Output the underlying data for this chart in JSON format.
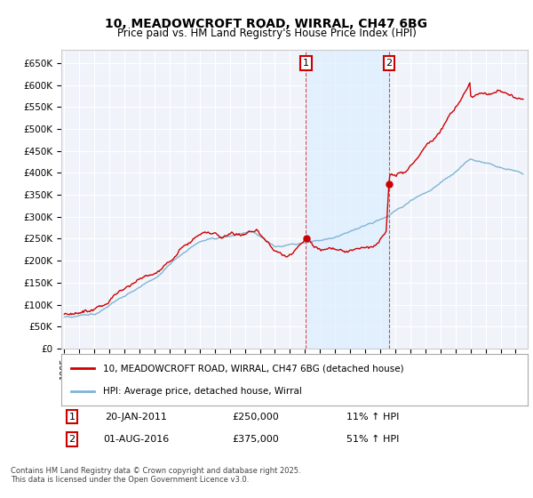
{
  "title": "10, MEADOWCROFT ROAD, WIRRAL, CH47 6BG",
  "subtitle": "Price paid vs. HM Land Registry's House Price Index (HPI)",
  "ylim": [
    0,
    680000
  ],
  "yticks": [
    0,
    50000,
    100000,
    150000,
    200000,
    250000,
    300000,
    350000,
    400000,
    450000,
    500000,
    550000,
    600000,
    650000
  ],
  "ytick_labels": [
    "£0",
    "£50K",
    "£100K",
    "£150K",
    "£200K",
    "£250K",
    "£300K",
    "£350K",
    "£400K",
    "£450K",
    "£500K",
    "£550K",
    "£600K",
    "£650K"
  ],
  "sale1_year": 2011.055,
  "sale1_price": 250000,
  "sale1_date": "20-JAN-2011",
  "sale1_hpi": "11% ↑ HPI",
  "sale2_year": 2016.583,
  "sale2_price": 375000,
  "sale2_date": "01-AUG-2016",
  "sale2_hpi": "51% ↑ HPI",
  "legend_line1": "10, MEADOWCROFT ROAD, WIRRAL, CH47 6BG (detached house)",
  "legend_line2": "HPI: Average price, detached house, Wirral",
  "footnote": "Contains HM Land Registry data © Crown copyright and database right 2025.\nThis data is licensed under the Open Government Licence v3.0.",
  "red_color": "#cc0000",
  "blue_color": "#7fb4d4",
  "shade_color": "#ddeeff",
  "bg_color": "#f0f4fa",
  "vline_color": "#dd4444",
  "box_color": "#cc0000",
  "xmin": 1995.0,
  "xmax": 2025.5
}
